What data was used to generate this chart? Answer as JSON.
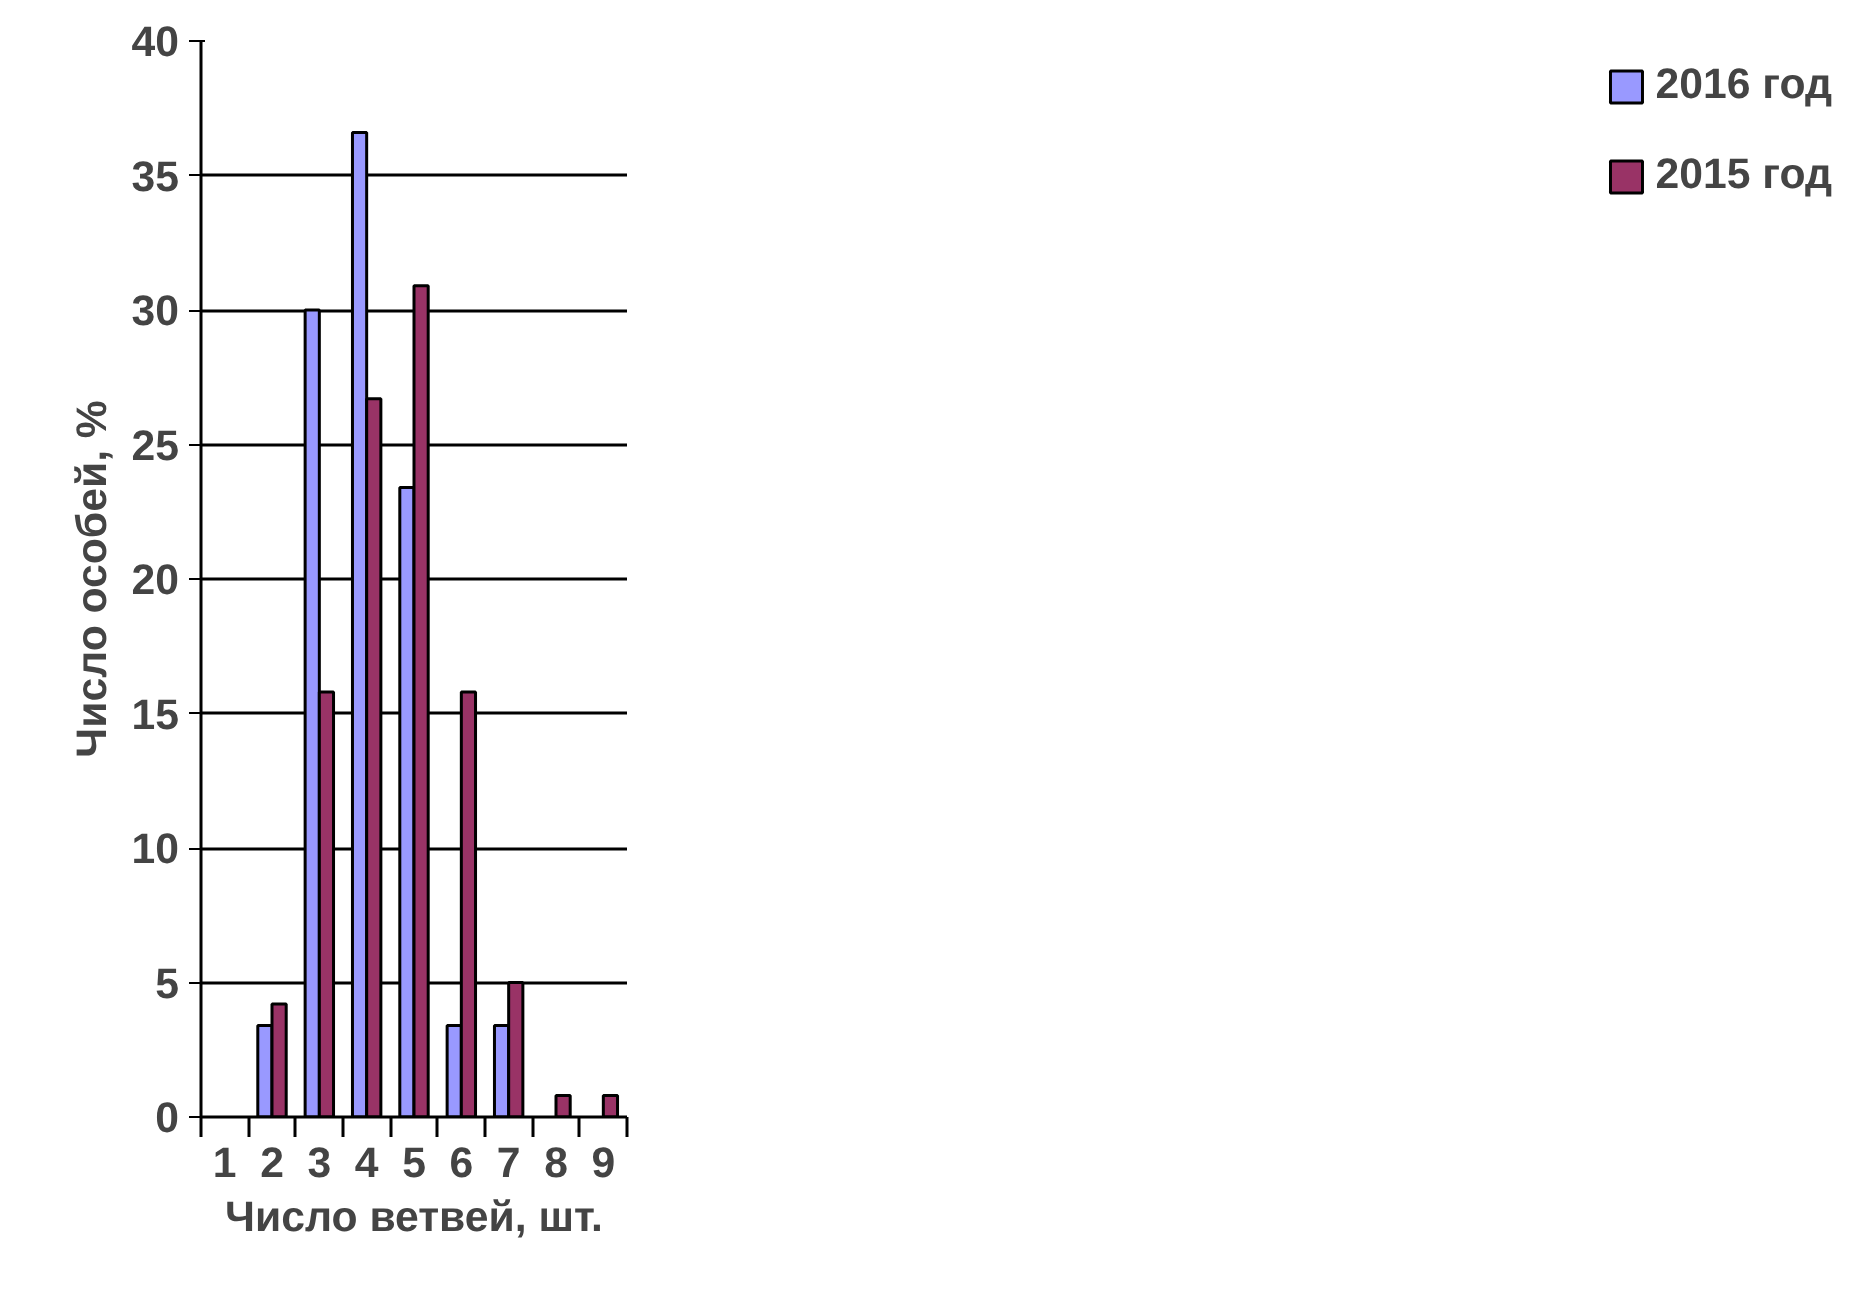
{
  "chart_data": {
    "type": "bar",
    "xlabel": "Число ветвей, шт.",
    "ylabel": "Число особей, %",
    "categories": [
      "1",
      "2",
      "3",
      "4",
      "5",
      "6",
      "7",
      "8",
      "9"
    ],
    "series": [
      {
        "name": "2016 год",
        "color": "#9999ff",
        "values": [
          null,
          3.4,
          30,
          36.6,
          23.4,
          3.4,
          3.4,
          null,
          null
        ]
      },
      {
        "name": "2015 год",
        "color": "#993366",
        "values": [
          null,
          4.2,
          15.8,
          26.7,
          30.9,
          15.8,
          5.0,
          0.8,
          0.8
        ]
      }
    ],
    "ylim": [
      0,
      40
    ],
    "yticks": [
      0,
      5,
      10,
      15,
      20,
      25,
      30,
      35,
      40
    ],
    "grid": "y",
    "legend": "right"
  }
}
